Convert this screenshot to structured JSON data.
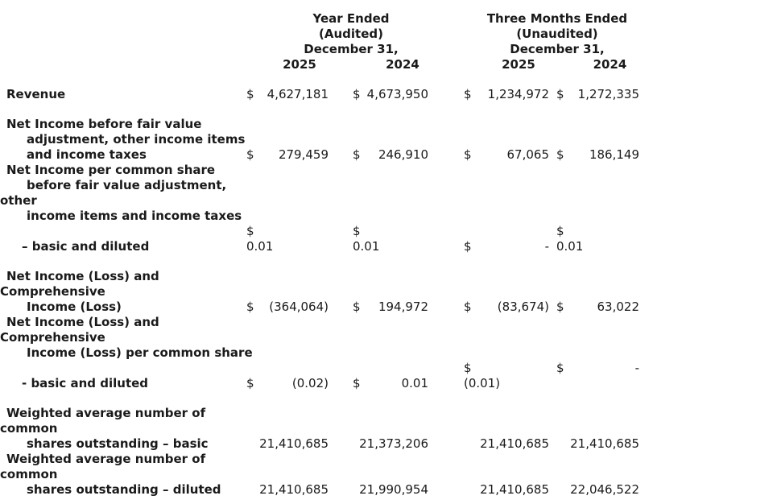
{
  "page": {
    "background_color": "#ffffff",
    "text_color": "#1a1a1a"
  },
  "table": {
    "header": {
      "year_ended": {
        "title": "Year Ended",
        "subtitle": "(Audited)",
        "date_line": "December 31,",
        "years": [
          "2025",
          "2024"
        ]
      },
      "three_months_ended": {
        "title": "Three Months Ended",
        "subtitle": "(Unaudited)",
        "date_line": "December 31,",
        "years": [
          "2025",
          "2024"
        ]
      }
    },
    "columns": [
      "Year Ended 2025",
      "Year Ended 2024",
      "Three Months Ended 2025",
      "Three Months Ended 2024"
    ],
    "rows": [
      {
        "id": "revenue",
        "gap_before": false,
        "label_lines": [
          {
            "text": "Revenue",
            "indent": 1
          }
        ],
        "cells": [
          {
            "lines": [
              {
                "d": "$",
                "v": "4,627,181"
              }
            ]
          },
          {
            "lines": [
              {
                "d": "$",
                "v": "4,673,950"
              }
            ]
          },
          {
            "lines": [
              {
                "d": "$",
                "v": "1,234,972"
              }
            ]
          },
          {
            "lines": [
              {
                "d": "$",
                "v": "1,272,335"
              }
            ]
          }
        ]
      },
      {
        "id": "net-income-before-fair-value",
        "gap_before": true,
        "label_lines": [
          {
            "text": "Net Income before fair value",
            "indent": 1
          },
          {
            "text": "adjustment, other income items",
            "indent": 3
          },
          {
            "text": "and income taxes",
            "indent": 3
          }
        ],
        "cells": [
          {
            "lines": [
              {
                "d": "$",
                "v": "279,459"
              }
            ]
          },
          {
            "lines": [
              {
                "d": "$",
                "v": "246,910"
              }
            ]
          },
          {
            "lines": [
              {
                "d": "$",
                "v": "67,065"
              }
            ]
          },
          {
            "lines": [
              {
                "d": "$",
                "v": "186,149"
              }
            ]
          }
        ]
      },
      {
        "id": "net-income-per-share-label",
        "gap_before": false,
        "label_lines": [
          {
            "text": "Net Income per common share",
            "indent": 1
          },
          {
            "text": "before fair value adjustment,",
            "indent": 3
          },
          {
            "text": "other",
            "indent": 0
          },
          {
            "text": "income items and income taxes",
            "indent": 3
          }
        ],
        "cells": []
      },
      {
        "id": "basic-and-diluted-before-fair-value",
        "gap_before": false,
        "label_lines": [
          {
            "text": "– basic and diluted",
            "indent": 2
          }
        ],
        "cells": [
          {
            "lines": [
              {
                "d": "$",
                "v": ""
              },
              {
                "d": "0.01",
                "v": ""
              }
            ]
          },
          {
            "lines": [
              {
                "d": "$",
                "v": ""
              },
              {
                "d": "0.01",
                "v": ""
              }
            ]
          },
          {
            "lines": [
              {
                "d": "$",
                "v": "-"
              }
            ]
          },
          {
            "lines": [
              {
                "d": "$",
                "v": ""
              },
              {
                "d": "0.01",
                "v": ""
              }
            ]
          }
        ]
      },
      {
        "id": "net-income-loss-comprehensive",
        "gap_before": true,
        "label_lines": [
          {
            "text": "Net Income (Loss) and",
            "indent": 1
          },
          {
            "text": "Comprehensive",
            "indent": 0
          },
          {
            "text": "Income (Loss)",
            "indent": 3
          }
        ],
        "cells": [
          {
            "lines": [
              {
                "d": "$",
                "v": "(364,064)"
              }
            ]
          },
          {
            "lines": [
              {
                "d": "$",
                "v": "194,972"
              }
            ]
          },
          {
            "lines": [
              {
                "d": "$",
                "v": "(83,674)"
              }
            ]
          },
          {
            "lines": [
              {
                "d": "$",
                "v": "63,022"
              }
            ]
          }
        ]
      },
      {
        "id": "net-income-loss-per-share-label",
        "gap_before": false,
        "label_lines": [
          {
            "text": "Net Income (Loss) and",
            "indent": 1
          },
          {
            "text": "Comprehensive",
            "indent": 0
          },
          {
            "text": "Income (Loss) per common share",
            "indent": 3
          }
        ],
        "cells": []
      },
      {
        "id": "basic-and-diluted-loss",
        "gap_before": false,
        "label_lines": [
          {
            "text": "- basic and diluted",
            "indent": 2
          }
        ],
        "cells": [
          {
            "lines": [
              {
                "d": "$",
                "v": "(0.02)"
              }
            ]
          },
          {
            "lines": [
              {
                "d": "$",
                "v": "0.01"
              }
            ]
          },
          {
            "lines": [
              {
                "d": "$",
                "v": ""
              },
              {
                "d": "(0.01)",
                "v": ""
              }
            ]
          },
          {
            "lines": [
              {
                "d": "$",
                "v": "-"
              }
            ],
            "align": "top"
          }
        ]
      },
      {
        "id": "weighted-average-basic",
        "gap_before": true,
        "label_lines": [
          {
            "text": "Weighted average number of",
            "indent": 1
          },
          {
            "text": "common",
            "indent": 0
          },
          {
            "text": "shares outstanding – basic",
            "indent": 3
          }
        ],
        "cells": [
          {
            "lines": [
              {
                "d": "",
                "v": "21,410,685"
              }
            ]
          },
          {
            "lines": [
              {
                "d": "",
                "v": "21,373,206"
              }
            ]
          },
          {
            "lines": [
              {
                "d": "",
                "v": "21,410,685"
              }
            ]
          },
          {
            "lines": [
              {
                "d": "",
                "v": "21,410,685"
              }
            ]
          }
        ]
      },
      {
        "id": "weighted-average-diluted",
        "gap_before": false,
        "label_lines": [
          {
            "text": "Weighted average number of",
            "indent": 1
          },
          {
            "text": "common",
            "indent": 0
          },
          {
            "text": "shares outstanding – diluted",
            "indent": 3
          }
        ],
        "cells": [
          {
            "lines": [
              {
                "d": "",
                "v": "21,410,685"
              }
            ]
          },
          {
            "lines": [
              {
                "d": "",
                "v": "21,990,954"
              }
            ]
          },
          {
            "lines": [
              {
                "d": "",
                "v": "21,410,685"
              }
            ]
          },
          {
            "lines": [
              {
                "d": "",
                "v": "22,046,522"
              }
            ]
          }
        ]
      }
    ]
  }
}
